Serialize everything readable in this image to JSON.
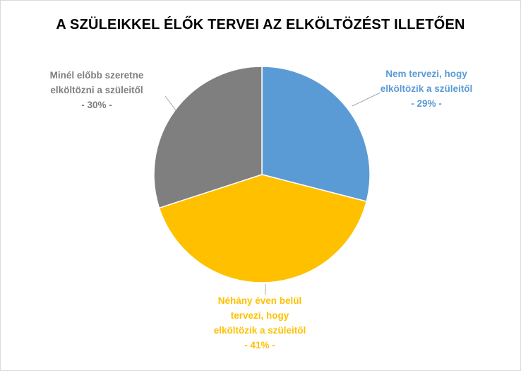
{
  "chart_data": {
    "type": "pie",
    "title": "A SZÜLEIKKEL ÉLŐK TERVEI AZ ELKÖLTÖZÉST ILLETŐEN",
    "slices": [
      {
        "label_lines": [
          "Nem tervezi, hogy",
          "elköltözik a szüleitől",
          "- 29% -"
        ],
        "value": 29,
        "color": "#5B9BD5"
      },
      {
        "label_lines": [
          "Néhány éven belül",
          "tervezi, hogy",
          "elköltözik a szüleitől",
          "- 41% -"
        ],
        "value": 41,
        "color": "#FFC000"
      },
      {
        "label_lines": [
          "Minél előbb szeretne",
          "elköltözni a szüleitől",
          "- 30% -"
        ],
        "value": 30,
        "color": "#7F7F7F"
      }
    ],
    "start_angle_deg": 0,
    "direction": "clockwise",
    "legend": "none",
    "data_labels": "outside with leader lines"
  }
}
